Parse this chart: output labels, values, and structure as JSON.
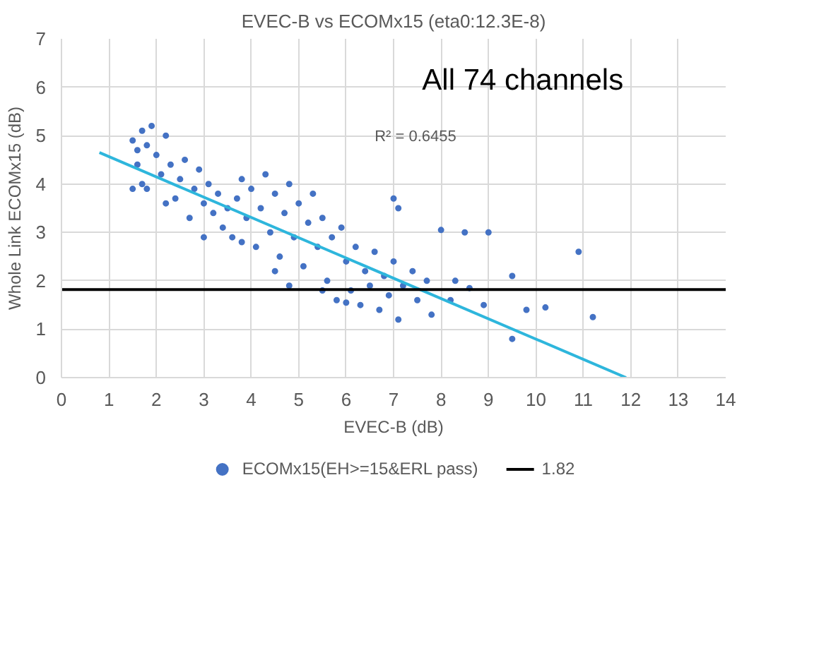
{
  "chart_data": {
    "type": "scatter",
    "title": "EVEC-B vs ECOMx15 (eta0:12.3E-8)",
    "xlabel": "EVEC-B (dB)",
    "ylabel": "Whole Link ECOMx15 (dB)",
    "xlim": [
      0,
      14
    ],
    "xticks": [
      0,
      1,
      2,
      3,
      4,
      5,
      6,
      7,
      8,
      9,
      10,
      11,
      12,
      13,
      14
    ],
    "ylim": [
      0,
      7
    ],
    "yticks": [
      0,
      1,
      2,
      3,
      4,
      5,
      6,
      7
    ],
    "grid": true,
    "legend": "bottom",
    "annotations": [
      "All 74 channels",
      "R² = 0.6455"
    ],
    "ref_lines": [
      {
        "axis": "y",
        "value": 1.82,
        "label": "1.82",
        "color": "#000000"
      }
    ],
    "series": [
      {
        "name": "ECOMx15(EH>=15&ERL pass)",
        "color": "#4472c4",
        "marker": "circle",
        "x": [
          1.5,
          1.6,
          1.7,
          1.8,
          1.9,
          1.6,
          2.0,
          2.2,
          1.5,
          1.7,
          2.1,
          2.3,
          2.5,
          2.4,
          2.6,
          2.8,
          2.9,
          3.0,
          3.1,
          3.2,
          3.3,
          3.5,
          3.4,
          3.6,
          3.7,
          3.8,
          3.9,
          4.0,
          4.1,
          4.2,
          4.3,
          4.4,
          4.5,
          4.6,
          4.7,
          4.8,
          4.9,
          5.0,
          5.1,
          5.2,
          5.3,
          5.4,
          5.5,
          5.6,
          5.7,
          5.8,
          5.9,
          6.0,
          6.1,
          6.2,
          6.3,
          6.4,
          6.5,
          6.6,
          6.7,
          6.8,
          6.9,
          7.0,
          7.1,
          7.2,
          7.4,
          7.5,
          7.7,
          2.7,
          3.0,
          3.8,
          4.5,
          5.5,
          6.0,
          2.2,
          1.8,
          4.8,
          7.0,
          7.1,
          8.0,
          8.5,
          9.0,
          10.9,
          9.5,
          8.3,
          7.8,
          9.8,
          10.2,
          11.2,
          9.5,
          8.9,
          8.6,
          8.2
        ],
        "values": [
          4.9,
          4.7,
          5.1,
          4.8,
          5.2,
          4.4,
          4.6,
          5.0,
          3.9,
          4.0,
          4.2,
          4.4,
          4.1,
          3.7,
          4.5,
          3.9,
          4.3,
          3.6,
          4.0,
          3.4,
          3.8,
          3.5,
          3.1,
          2.9,
          3.7,
          4.1,
          3.3,
          3.9,
          2.7,
          3.5,
          4.2,
          3.0,
          3.8,
          2.5,
          3.4,
          4.0,
          2.9,
          3.6,
          2.3,
          3.2,
          3.8,
          2.7,
          3.3,
          2.0,
          2.9,
          1.6,
          3.1,
          2.4,
          1.8,
          2.7,
          1.5,
          2.2,
          1.9,
          2.6,
          1.4,
          2.1,
          1.7,
          2.4,
          1.2,
          1.9,
          2.2,
          1.6,
          2.0,
          3.3,
          2.9,
          2.8,
          2.2,
          1.8,
          1.55,
          3.6,
          3.9,
          1.9,
          3.7,
          3.5,
          3.05,
          3.0,
          3.0,
          2.6,
          2.1,
          2.0,
          1.3,
          1.4,
          1.45,
          1.25,
          0.8,
          1.5,
          1.85,
          1.6
        ]
      },
      {
        "color": "#2eb6dc",
        "type": "line",
        "x": [
          0.8,
          11.9
        ],
        "values": [
          4.65,
          0
        ]
      }
    ]
  }
}
